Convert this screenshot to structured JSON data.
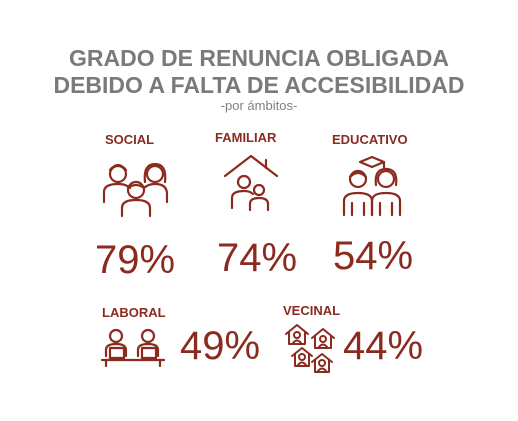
{
  "chart_data": {
    "type": "table",
    "title_line1": "GRADO DE RENUNCIA OBLIGADA",
    "title_line2": "DEBIDO A FALTA DE ACCESIBILIDAD",
    "subtitle": "-por ámbitos-",
    "categories": [
      "SOCIAL",
      "FAMILIAR",
      "EDUCATIVO",
      "LABORAL",
      "VECINAL"
    ],
    "values": [
      79,
      74,
      54,
      49,
      44
    ],
    "value_labels": [
      "79%",
      "74%",
      "54%",
      "49%",
      "44%"
    ],
    "unit": "%"
  },
  "colors": {
    "accent": "#8b2a1e",
    "title": "#7a7a7a"
  },
  "icons": [
    "group-people-icon",
    "family-house-icon",
    "graduates-icon",
    "workers-desk-icon",
    "neighbor-houses-icon"
  ]
}
